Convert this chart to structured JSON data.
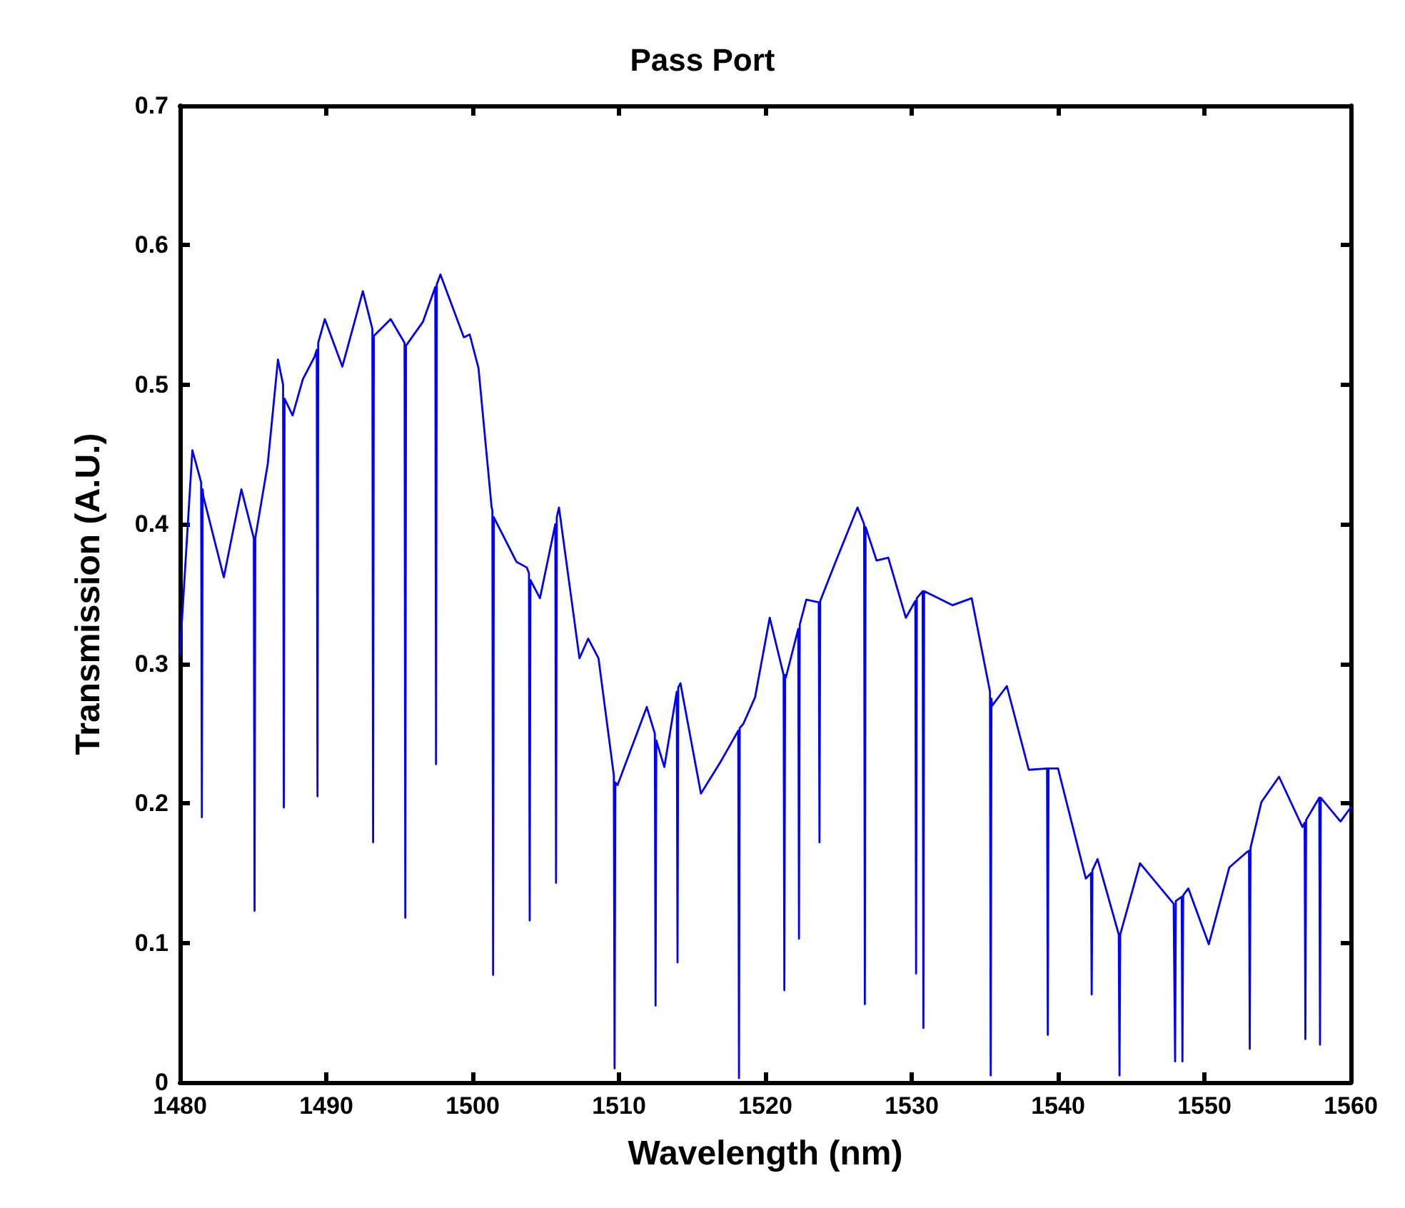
{
  "chart_data": {
    "type": "line",
    "title": "Pass Port",
    "xlabel": "Wavelength (nm)",
    "ylabel": "Transmission (A.U.)",
    "xlim": [
      1480,
      1560
    ],
    "xticks": [
      1480,
      1490,
      1500,
      1510,
      1520,
      1530,
      1540,
      1550,
      1560
    ],
    "ylim": [
      0,
      0.7
    ],
    "yticks": [
      0,
      0.1,
      0.2,
      0.3,
      0.4,
      0.5,
      0.6,
      0.7
    ],
    "grid": false,
    "marker": "none",
    "line_style": "solid",
    "series": [
      {
        "color": "#0000ff",
        "x": [
          1480,
          1480.85,
          1481.45,
          1481.5,
          1481.55,
          1481.6,
          1483.0,
          1484.2,
          1485.05,
          1485.1,
          1485.15,
          1486.0,
          1486.7,
          1487.05,
          1487.1,
          1487.15,
          1487.7,
          1488.4,
          1489.2,
          1489.35,
          1489.4,
          1489.45,
          1489.9,
          1491.1,
          1492.5,
          1493.15,
          1493.2,
          1493.25,
          1494.4,
          1495.35,
          1495.4,
          1495.45,
          1496.6,
          1497.45,
          1497.5,
          1497.55,
          1497.8,
          1499.4,
          1499.8,
          1500.4,
          1501.3,
          1501.35,
          1501.4,
          1501.45,
          1503.0,
          1503.7,
          1503.85,
          1503.9,
          1503.95,
          1504.6,
          1505.65,
          1505.7,
          1505.75,
          1505.9,
          1507.3,
          1507.9,
          1508.6,
          1509.65,
          1509.7,
          1509.75,
          1509.9,
          1511.9,
          1512.45,
          1512.5,
          1512.55,
          1513.1,
          1513.95,
          1514.0,
          1514.05,
          1514.2,
          1515.6,
          1516.9,
          1518.15,
          1518.2,
          1518.25,
          1518.5,
          1519.3,
          1520.3,
          1521.25,
          1521.3,
          1521.35,
          1521.4,
          1522.25,
          1522.3,
          1522.35,
          1522.8,
          1523.65,
          1523.7,
          1523.75,
          1524.8,
          1526.3,
          1526.75,
          1526.8,
          1526.85,
          1527.6,
          1528.4,
          1529.6,
          1530.25,
          1530.3,
          1530.35,
          1530.75,
          1530.8,
          1530.85,
          1532.8,
          1534.1,
          1535.35,
          1535.4,
          1535.45,
          1535.5,
          1536.5,
          1538.0,
          1539.25,
          1539.3,
          1539.35,
          1540.0,
          1541.9,
          1542.25,
          1542.3,
          1542.35,
          1542.7,
          1544.15,
          1544.2,
          1544.25,
          1545.6,
          1547.9,
          1547.95,
          1548.0,
          1548.05,
          1548.45,
          1548.5,
          1548.55,
          1548.9,
          1550.3,
          1551.7,
          1552.9,
          1553.05,
          1553.1,
          1553.15,
          1553.9,
          1555.1,
          1556.7,
          1556.85,
          1556.9,
          1556.95,
          1557.85,
          1557.9,
          1557.95,
          1559.3,
          1560
        ],
        "values": [
          0.307,
          0.453,
          0.43,
          0.19,
          0.425,
          0.42,
          0.362,
          0.425,
          0.39,
          0.123,
          0.39,
          0.443,
          0.518,
          0.5,
          0.197,
          0.49,
          0.478,
          0.504,
          0.52,
          0.525,
          0.205,
          0.53,
          0.547,
          0.513,
          0.567,
          0.54,
          0.172,
          0.535,
          0.547,
          0.53,
          0.118,
          0.528,
          0.545,
          0.57,
          0.228,
          0.572,
          0.579,
          0.534,
          0.536,
          0.512,
          0.412,
          0.41,
          0.077,
          0.405,
          0.373,
          0.369,
          0.365,
          0.116,
          0.36,
          0.347,
          0.4,
          0.143,
          0.405,
          0.412,
          0.304,
          0.318,
          0.304,
          0.22,
          0.01,
          0.215,
          0.213,
          0.269,
          0.25,
          0.055,
          0.245,
          0.226,
          0.28,
          0.086,
          0.283,
          0.286,
          0.207,
          0.229,
          0.252,
          0.003,
          0.254,
          0.257,
          0.276,
          0.333,
          0.292,
          0.066,
          0.292,
          0.29,
          0.325,
          0.103,
          0.328,
          0.346,
          0.344,
          0.172,
          0.345,
          0.373,
          0.412,
          0.4,
          0.056,
          0.398,
          0.374,
          0.376,
          0.333,
          0.345,
          0.078,
          0.347,
          0.352,
          0.039,
          0.352,
          0.342,
          0.347,
          0.28,
          0.005,
          0.275,
          0.27,
          0.284,
          0.224,
          0.225,
          0.034,
          0.225,
          0.225,
          0.146,
          0.15,
          0.063,
          0.152,
          0.16,
          0.106,
          0.005,
          0.106,
          0.157,
          0.128,
          0.128,
          0.015,
          0.13,
          0.133,
          0.015,
          0.134,
          0.139,
          0.099,
          0.154,
          0.165,
          0.166,
          0.024,
          0.168,
          0.201,
          0.219,
          0.183,
          0.186,
          0.031,
          0.188,
          0.204,
          0.027,
          0.204,
          0.187,
          0.197
        ]
      }
    ]
  }
}
